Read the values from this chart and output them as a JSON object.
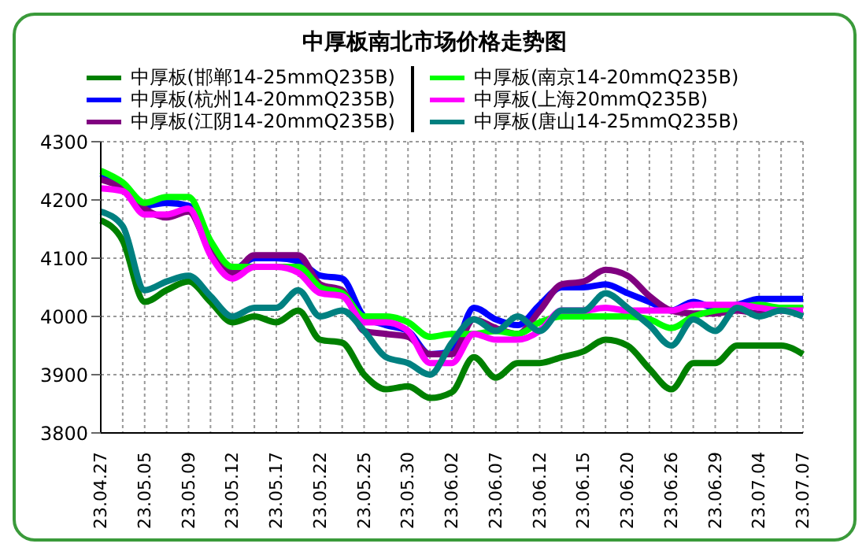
{
  "chart_data": {
    "type": "line",
    "title": "中厚板南北市场价格走势图",
    "categories": [
      "23.04.27",
      null,
      "23.05.05",
      null,
      "23.05.09",
      null,
      "23.05.12",
      null,
      "23.05.17",
      null,
      "23.05.22",
      null,
      "23.05.25",
      null,
      "23.05.30",
      null,
      "23.06.02",
      null,
      "23.06.07",
      null,
      "23.06.12",
      null,
      "23.06.15",
      null,
      "23.06.20",
      null,
      "23.06.26",
      null,
      "23.06.29",
      null,
      "23.07.04",
      null,
      "23.07.07"
    ],
    "series": [
      {
        "name": "中厚板(邯郸14-25mmQ235B)",
        "color": "#008000",
        "values": [
          4165,
          4130,
          4025,
          4045,
          4060,
          4025,
          3990,
          4000,
          3990,
          4010,
          3960,
          3955,
          3900,
          3875,
          3880,
          3860,
          3870,
          3930,
          3895,
          3920,
          3920,
          3930,
          3940,
          3960,
          3950,
          3910,
          3875,
          3920,
          3920,
          3950,
          3950,
          3950,
          3935
        ]
      },
      {
        "name": "中厚板(杭州14-20mmQ235B)",
        "color": "#0000ff",
        "values": [
          4245,
          4225,
          4190,
          4195,
          4190,
          4115,
          4080,
          4100,
          4100,
          4095,
          4070,
          4065,
          4000,
          3985,
          3975,
          3935,
          3940,
          4015,
          3995,
          3985,
          4020,
          4050,
          4050,
          4055,
          4040,
          4025,
          4010,
          4025,
          4015,
          4020,
          4030,
          4030,
          4030
        ]
      },
      {
        "name": "中厚板(江阴14-20mmQ235B)",
        "color": "#800080",
        "values": [
          4235,
          4220,
          4185,
          4170,
          4180,
          4110,
          4075,
          4105,
          4105,
          4105,
          4055,
          4045,
          3975,
          3970,
          3965,
          3935,
          3935,
          3995,
          3980,
          3970,
          4010,
          4055,
          4060,
          4080,
          4070,
          4035,
          4010,
          4005,
          4005,
          4010,
          4005,
          4010,
          4010
        ]
      },
      {
        "name": "中厚板(南京14-20mmQ235B)",
        "color": "#00ff00",
        "values": [
          4250,
          4230,
          4195,
          4205,
          4205,
          4130,
          4085,
          4085,
          4085,
          4085,
          4050,
          4040,
          4000,
          4000,
          3990,
          3965,
          3970,
          3970,
          3975,
          3970,
          3990,
          4000,
          4000,
          4000,
          4000,
          3995,
          3980,
          4000,
          4010,
          4015,
          4020,
          4015,
          4015
        ]
      },
      {
        "name": "中厚板(上海20mmQ235B)",
        "color": "#ff00ff",
        "values": [
          4220,
          4215,
          4175,
          4175,
          4185,
          4105,
          4065,
          4085,
          4085,
          4075,
          4040,
          4035,
          3990,
          3990,
          3975,
          3920,
          3920,
          3970,
          3960,
          3960,
          3975,
          4010,
          4010,
          4015,
          4010,
          4010,
          4010,
          4020,
          4020,
          4020,
          4015,
          4010,
          4010
        ]
      },
      {
        "name": "中厚板(唐山14-25mmQ235B)",
        "color": "#008080",
        "values": [
          4180,
          4155,
          4045,
          4060,
          4070,
          4035,
          4000,
          4015,
          4015,
          4045,
          4000,
          4010,
          3975,
          3930,
          3920,
          3900,
          3955,
          3995,
          3975,
          4000,
          3975,
          4010,
          4010,
          4040,
          4015,
          3985,
          3950,
          3995,
          3975,
          4015,
          4000,
          4010,
          4000
        ]
      }
    ],
    "ylim": [
      3800,
      4300
    ],
    "yticks": [
      3800,
      3900,
      4000,
      4100,
      4200,
      4300
    ],
    "grid": true,
    "legend": "top",
    "marker": "none",
    "line_style": "solid"
  }
}
